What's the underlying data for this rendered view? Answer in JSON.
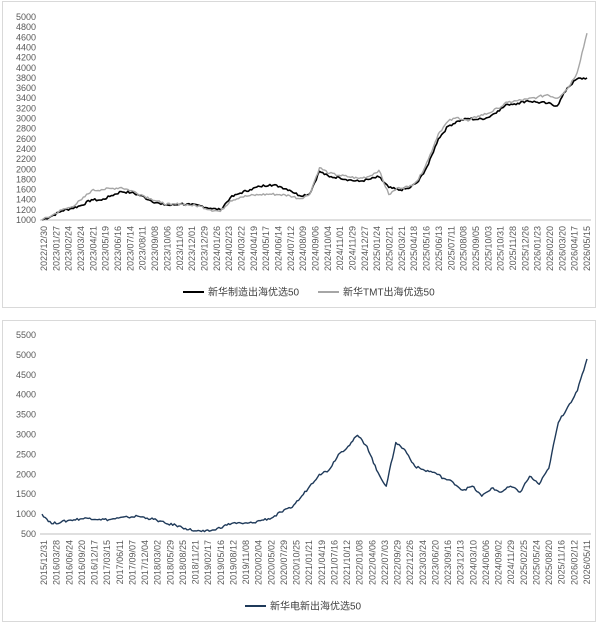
{
  "chart_data": [
    {
      "type": "line",
      "ylim": [
        1000,
        5000
      ],
      "yticks": [
        1000,
        1200,
        1400,
        1600,
        1800,
        2000,
        2200,
        2400,
        2600,
        2800,
        3000,
        3200,
        3400,
        3600,
        3800,
        4000,
        4200,
        4400,
        4600,
        4800,
        5000
      ],
      "x_tick_labels": [
        "2022/12/30",
        "2023/01/27",
        "2023/02/24",
        "2023/03/24",
        "2023/04/21",
        "2023/05/19",
        "2023/06/16",
        "2023/07/14",
        "2023/08/11",
        "2023/09/08",
        "2023/10/06",
        "2023/11/03",
        "2023/12/01",
        "2023/12/29",
        "2024/01/26",
        "2024/02/23",
        "2024/03/22",
        "2024/04/19",
        "2024/05/17",
        "2024/06/14",
        "2024/07/12",
        "2024/08/09",
        "2024/09/06",
        "2024/10/04",
        "2024/11/01",
        "2024/11/29",
        "2024/12/27",
        "2025/01/24",
        "2025/02/21",
        "2025/03/21",
        "2025/04/18",
        "2025/05/16",
        "2025/06/13",
        "2025/07/11",
        "2025/08/08",
        "2025/09/05",
        "2025/10/03",
        "2025/10/31",
        "2025/11/28",
        "2025/12/26",
        "2026/01/23",
        "2026/02/20",
        "2026/03/20",
        "2026/04/17",
        "2026/05/15"
      ],
      "grid": false,
      "legend_position": "bottom",
      "series": [
        {
          "name": "新华制造出海优选50",
          "color": "#000000",
          "values": [
            1000,
            1080,
            1180,
            1230,
            1290,
            1400,
            1390,
            1480,
            1560,
            1540,
            1480,
            1380,
            1310,
            1290,
            1320,
            1300,
            1280,
            1230,
            1200,
            1440,
            1530,
            1600,
            1660,
            1700,
            1660,
            1590,
            1480,
            1510,
            1960,
            1850,
            1840,
            1790,
            1760,
            1800,
            1850,
            1640,
            1590,
            1620,
            1760,
            2100,
            2600,
            2850,
            2950,
            3000,
            2980,
            3020,
            3150,
            3280,
            3300,
            3350,
            3320,
            3300,
            3250,
            3600,
            3780,
            3800
          ]
        },
        {
          "name": "新华TMT出海优选50",
          "color": "#a6a6a6",
          "values": [
            1000,
            1090,
            1200,
            1260,
            1400,
            1580,
            1600,
            1620,
            1640,
            1580,
            1500,
            1420,
            1340,
            1300,
            1320,
            1290,
            1270,
            1200,
            1170,
            1380,
            1450,
            1480,
            1500,
            1510,
            1500,
            1480,
            1420,
            1500,
            2030,
            1920,
            1880,
            1850,
            1820,
            1860,
            1980,
            1500,
            1640,
            1650,
            1800,
            2200,
            2700,
            2950,
            3020,
            2950,
            3050,
            3100,
            3200,
            3320,
            3350,
            3380,
            3420,
            3470,
            3400,
            3580,
            3900,
            4680
          ]
        }
      ]
    },
    {
      "type": "line",
      "ylim": [
        500,
        5500
      ],
      "yticks": [
        500,
        1000,
        1500,
        2000,
        2500,
        3000,
        3500,
        4000,
        4500,
        5000,
        5500
      ],
      "x_tick_labels": [
        "2015/12/31",
        "2016/03/28",
        "2016/06/24",
        "2016/09/20",
        "2016/12/17",
        "2017/03/15",
        "2017/06/11",
        "2017/09/07",
        "2017/12/04",
        "2018/03/02",
        "2018/05/29",
        "2018/08/25",
        "2018/11/21",
        "2019/02/17",
        "2019/05/16",
        "2019/08/12",
        "2019/11/08",
        "2020/02/04",
        "2020/05/02",
        "2020/07/29",
        "2020/10/25",
        "2021/01/21",
        "2021/04/19",
        "2021/07/16",
        "2021/10/12",
        "2022/01/08",
        "2022/04/06",
        "2022/07/03",
        "2022/09/29",
        "2022/12/26",
        "2023/03/24",
        "2023/06/20",
        "2023/09/16",
        "2023/12/13",
        "2024/03/10",
        "2024/06/06",
        "2024/09/02",
        "2024/11/29",
        "2025/02/25",
        "2025/05/24",
        "2025/08/20",
        "2025/11/16",
        "2026/02/12",
        "2026/05/11"
      ],
      "grid": false,
      "legend_position": "bottom",
      "series": [
        {
          "name": "新华电新出海优选50",
          "color": "#1f3a5a",
          "values": [
            1000,
            760,
            800,
            850,
            880,
            900,
            870,
            860,
            900,
            920,
            950,
            900,
            850,
            760,
            720,
            640,
            580,
            560,
            600,
            700,
            780,
            760,
            780,
            850,
            900,
            1050,
            1150,
            1400,
            1700,
            2000,
            2100,
            2500,
            2700,
            2980,
            2700,
            2100,
            1700,
            2800,
            2600,
            2200,
            2100,
            2050,
            1900,
            1800,
            1600,
            1700,
            1450,
            1650,
            1550,
            1700,
            1550,
            1950,
            1750,
            2150,
            3300,
            3700,
            4100,
            4900
          ]
        }
      ]
    }
  ]
}
